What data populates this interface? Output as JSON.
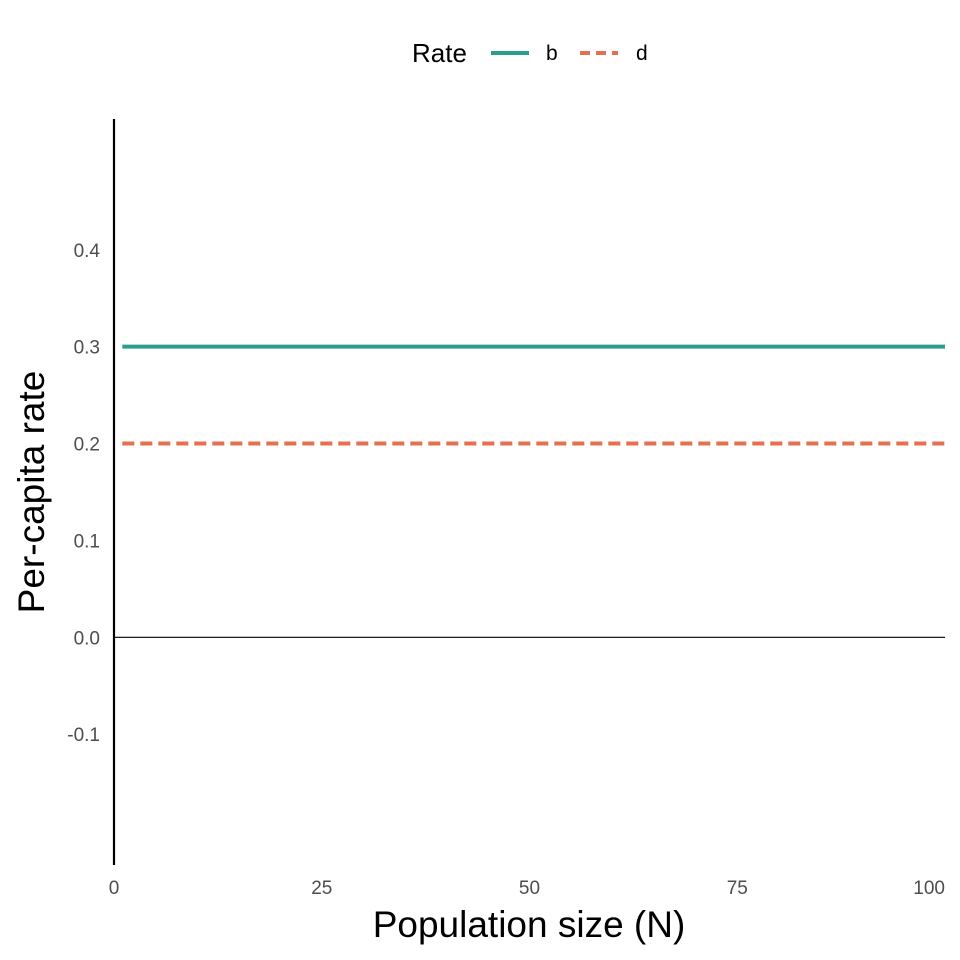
{
  "chart_data": {
    "type": "line",
    "title": "",
    "xlabel": "Population size (N)",
    "ylabel": "Per-capita rate",
    "xlim": [
      0,
      100
    ],
    "ylim": [
      -0.235,
      0.535
    ],
    "x_ticks": [
      0,
      25,
      50,
      75,
      100
    ],
    "x_tick_labels": [
      "0",
      "25",
      "50",
      "75",
      "100"
    ],
    "y_ticks": [
      -0.1,
      0.0,
      0.1,
      0.2,
      0.3,
      0.4
    ],
    "y_tick_labels": [
      "-0.1",
      "0.0",
      "0.1",
      "0.2",
      "0.3",
      "0.4"
    ],
    "grid": false,
    "reference_line_y": 0,
    "legend": {
      "title": "Rate",
      "position": "top"
    },
    "series": [
      {
        "name": "b",
        "color": "#2a9d8f",
        "dash": "solid",
        "x": [
          1,
          100
        ],
        "y": [
          0.3,
          0.3
        ]
      },
      {
        "name": "d",
        "color": "#e76f51",
        "dash": "dashed",
        "x": [
          1,
          100
        ],
        "y": [
          0.2,
          0.2
        ]
      }
    ]
  }
}
